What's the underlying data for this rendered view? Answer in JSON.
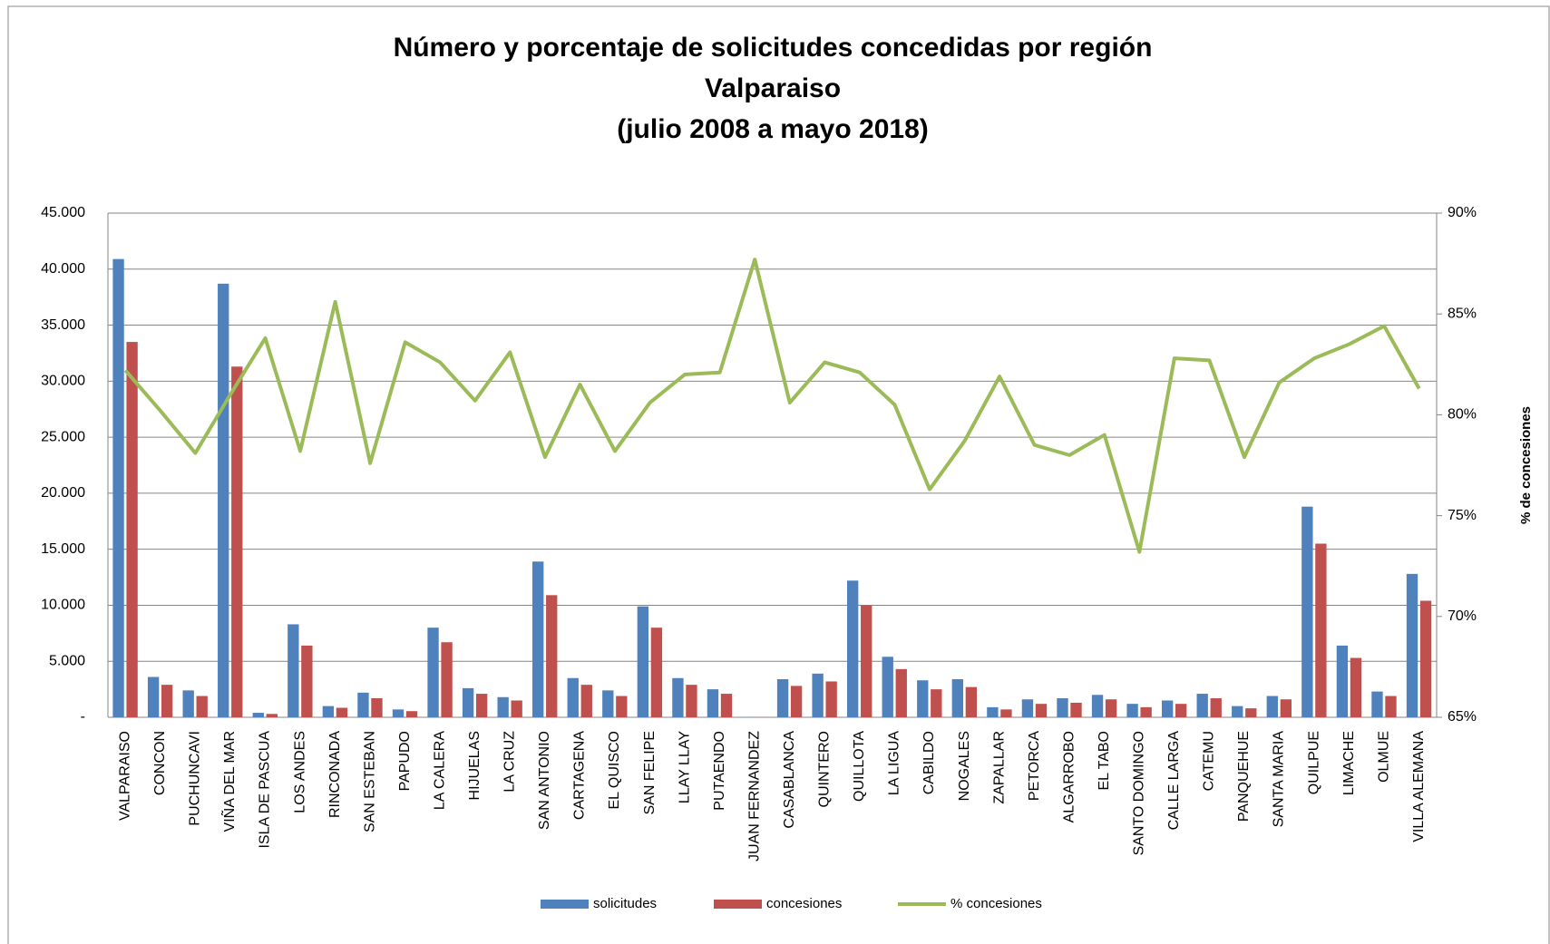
{
  "chart_data": {
    "type": "bar",
    "title": [
      "Número y porcentaje de solicitudes concedidas por región",
      "Valparaiso",
      "(julio 2008 a mayo 2018)"
    ],
    "y2_label": "% de concesiones",
    "categories": [
      "VALPARAISO",
      "CONCON",
      "PUCHUNCAVI",
      "VIÑA DEL MAR",
      "ISLA DE PASCUA",
      "LOS ANDES",
      "RINCONADA",
      "SAN ESTEBAN",
      "PAPUDO",
      "LA CALERA",
      "HIJUELAS",
      "LA CRUZ",
      "SAN ANTONIO",
      "CARTAGENA",
      "EL QUISCO",
      "SAN FELIPE",
      "LLAY LLAY",
      "PUTAENDO",
      "JUAN FERNANDEZ",
      "CASABLANCA",
      "QUINTERO",
      "QUILLOTA",
      "LA LIGUA",
      "CABILDO",
      "NOGALES",
      "ZAPALLAR",
      "PETORCA",
      "ALGARROBO",
      "EL TABO",
      "SANTO DOMINGO",
      "CALLE LARGA",
      "CATEMU",
      "PANQUEHUE",
      "SANTA MARIA",
      "QUILPUE",
      "LIMACHE",
      "OLMUE",
      "VILLA ALEMANA"
    ],
    "series": [
      {
        "name": "solicitudes",
        "color": "#4f81bd",
        "type": "bar",
        "values": [
          40900,
          3600,
          2400,
          38700,
          400,
          8300,
          1000,
          2200,
          700,
          8000,
          2600,
          1800,
          13900,
          3500,
          2400,
          9900,
          3500,
          2500,
          20,
          3400,
          3900,
          12200,
          5400,
          3300,
          3400,
          900,
          1600,
          1700,
          2000,
          1200,
          1500,
          2100,
          1000,
          1900,
          18800,
          6400,
          2300,
          12800
        ]
      },
      {
        "name": "concesiones",
        "color": "#c0504d",
        "type": "bar",
        "values": [
          33500,
          2900,
          1900,
          31300,
          300,
          6400,
          850,
          1700,
          550,
          6700,
          2100,
          1500,
          10900,
          2900,
          1900,
          8000,
          2900,
          2100,
          15,
          2800,
          3200,
          10000,
          4300,
          2500,
          2700,
          700,
          1200,
          1300,
          1600,
          900,
          1200,
          1700,
          800,
          1600,
          15500,
          5300,
          1900,
          10400
        ]
      },
      {
        "name": "% concesiones",
        "color": "#9bbb59",
        "type": "line",
        "axis": "y2",
        "values": [
          82.2,
          80.2,
          78.1,
          81.0,
          83.8,
          78.2,
          85.6,
          77.6,
          83.6,
          82.6,
          80.7,
          83.1,
          77.9,
          81.5,
          78.2,
          80.6,
          82.0,
          82.1,
          87.7,
          80.6,
          82.6,
          82.1,
          80.5,
          76.3,
          78.7,
          81.9,
          78.5,
          78.0,
          79.0,
          73.2,
          82.8,
          82.7,
          77.9,
          81.6,
          82.8,
          83.5,
          84.4,
          81.3
        ]
      }
    ],
    "ylim": [
      0,
      45000
    ],
    "yticks": [
      {
        "value": 0,
        "label": "-"
      },
      {
        "value": 5000,
        "label": "5.000"
      },
      {
        "value": 10000,
        "label": "10.000"
      },
      {
        "value": 15000,
        "label": "15.000"
      },
      {
        "value": 20000,
        "label": "20.000"
      },
      {
        "value": 25000,
        "label": "25.000"
      },
      {
        "value": 30000,
        "label": "30.000"
      },
      {
        "value": 35000,
        "label": "35.000"
      },
      {
        "value": 40000,
        "label": "40.000"
      },
      {
        "value": 45000,
        "label": "45.000"
      }
    ],
    "y2lim": [
      65,
      90
    ],
    "y2ticks": [
      {
        "value": 65,
        "label": "65%"
      },
      {
        "value": 70,
        "label": "70%"
      },
      {
        "value": 75,
        "label": "75%"
      },
      {
        "value": 80,
        "label": "80%"
      },
      {
        "value": 85,
        "label": "85%"
      },
      {
        "value": 90,
        "label": "90%"
      }
    ],
    "grid": true,
    "legend": "bottom"
  }
}
